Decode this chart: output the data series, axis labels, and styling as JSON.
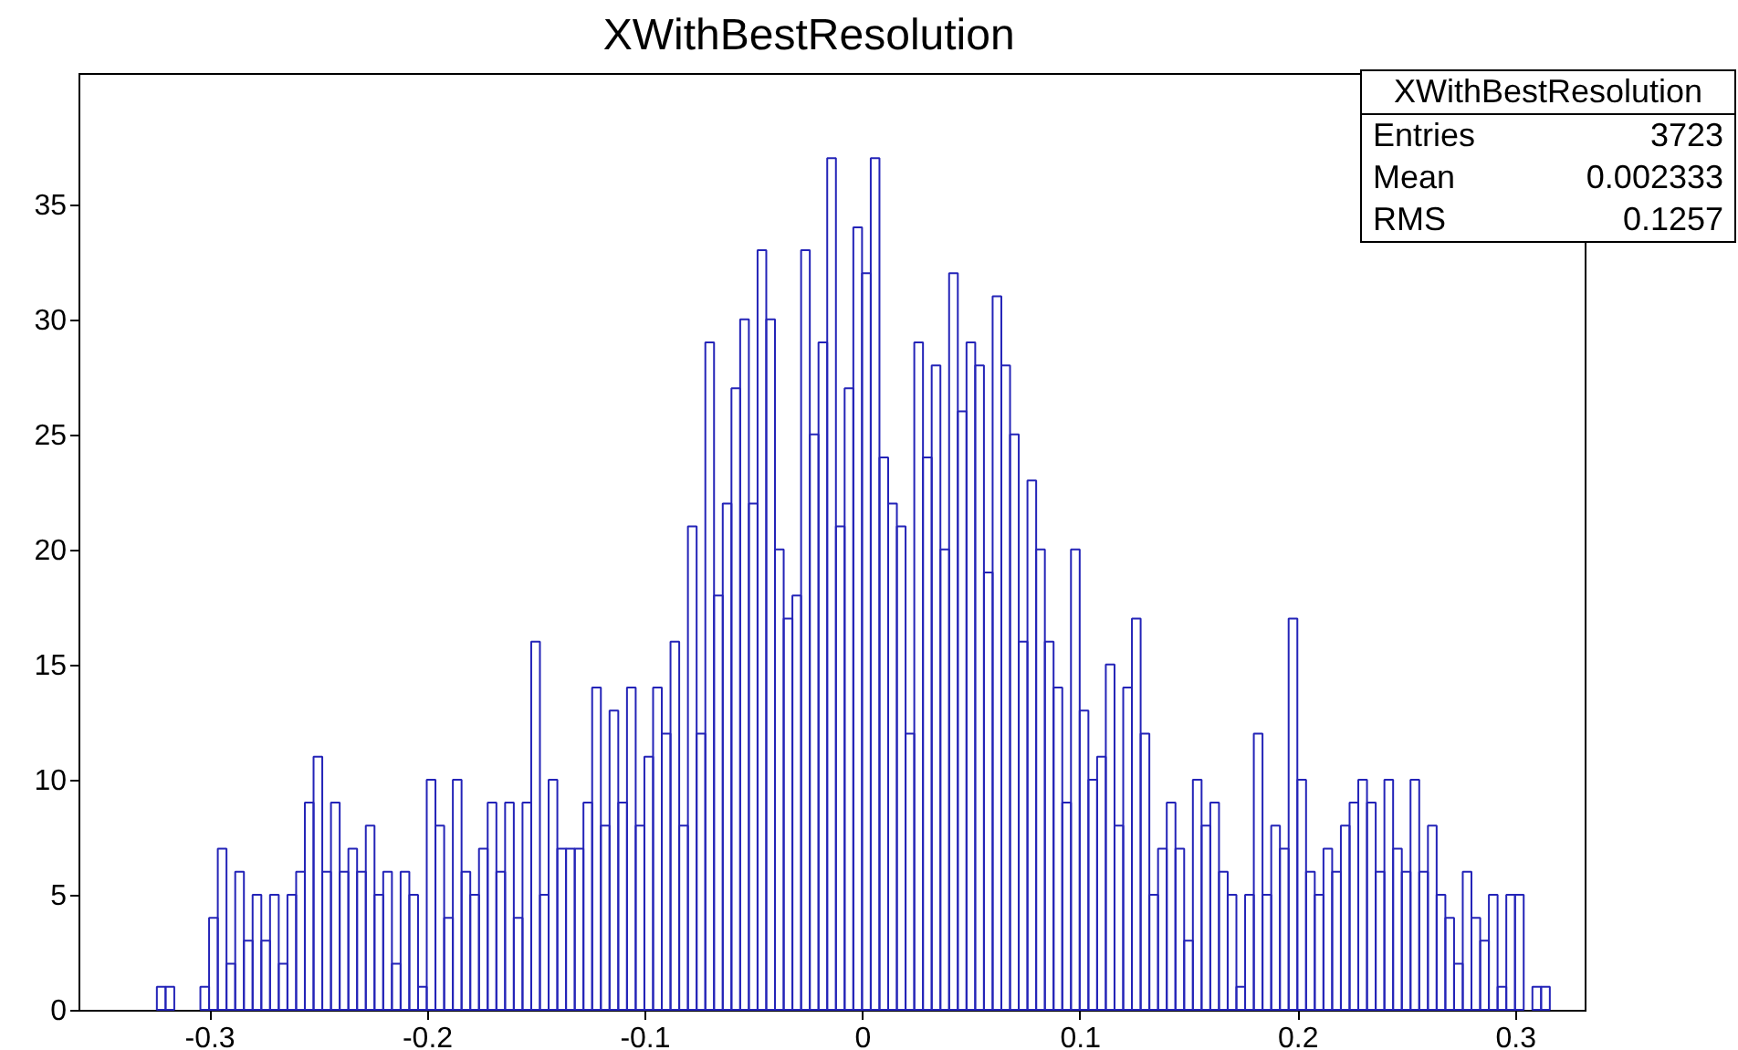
{
  "chart_data": {
    "type": "histogram",
    "title": "XWithBestResolution",
    "annotations": [
      "XWithBestResolution",
      "Entries 3723",
      "Mean 0.002333",
      "RMS 0.1257"
    ],
    "color": "#2424b8",
    "xlim": [
      -0.36,
      0.332
    ],
    "xticks": [
      -0.3,
      -0.2,
      -0.1,
      0,
      0.1,
      0.2,
      0.3
    ],
    "ylim": [
      0,
      40.7
    ],
    "yticks": [
      0,
      5,
      10,
      15,
      20,
      25,
      30,
      35
    ],
    "bins": [
      -0.36,
      -0.356,
      -0.352,
      -0.348,
      -0.344,
      -0.34,
      -0.336,
      -0.332,
      -0.328,
      -0.324,
      -0.32,
      -0.316,
      -0.312,
      -0.308,
      -0.304,
      -0.3,
      -0.296,
      -0.292,
      -0.288,
      -0.284,
      -0.28,
      -0.276,
      -0.272,
      -0.268,
      -0.264,
      -0.26,
      -0.256,
      -0.252,
      -0.248,
      -0.244,
      -0.24,
      -0.236,
      -0.232,
      -0.228,
      -0.224,
      -0.22,
      -0.216,
      -0.212,
      -0.208,
      -0.204,
      -0.2,
      -0.196,
      -0.192,
      -0.188,
      -0.184,
      -0.18,
      -0.176,
      -0.172,
      -0.168,
      -0.164,
      -0.16,
      -0.156,
      -0.152,
      -0.148,
      -0.144,
      -0.14,
      -0.136,
      -0.132,
      -0.128,
      -0.124,
      -0.12,
      -0.116,
      -0.112,
      -0.108,
      -0.104,
      -0.1,
      -0.096,
      -0.092,
      -0.088,
      -0.084,
      -0.08,
      -0.076,
      -0.072,
      -0.068,
      -0.064,
      -0.06,
      -0.056,
      -0.052,
      -0.048,
      -0.044,
      -0.04,
      -0.036,
      -0.032,
      -0.028,
      -0.024,
      -0.02,
      -0.016,
      -0.012,
      -0.008,
      -0.004,
      0,
      0.004,
      0.008,
      0.012,
      0.016,
      0.02,
      0.024,
      0.028,
      0.032,
      0.036,
      0.04,
      0.044,
      0.048,
      0.052,
      0.056,
      0.06,
      0.064,
      0.068,
      0.072,
      0.076,
      0.08,
      0.084,
      0.088,
      0.092,
      0.096,
      0.1,
      0.104,
      0.108,
      0.112,
      0.116,
      0.12,
      0.124,
      0.128,
      0.132,
      0.136,
      0.14,
      0.144,
      0.148,
      0.152,
      0.156,
      0.16,
      0.164,
      0.168,
      0.172,
      0.176,
      0.18,
      0.184,
      0.188,
      0.192,
      0.196,
      0.2,
      0.204,
      0.208,
      0.212,
      0.216,
      0.22,
      0.224,
      0.228,
      0.232,
      0.236,
      0.24,
      0.244,
      0.248,
      0.252,
      0.256,
      0.26,
      0.264,
      0.268,
      0.272,
      0.276,
      0.28,
      0.284,
      0.288,
      0.292,
      0.296,
      0.3,
      0.304,
      0.308,
      0.312,
      0.316,
      0.32,
      0.324,
      0.328,
      0.332
    ],
    "values": [
      0,
      0,
      0,
      0,
      0,
      0,
      0,
      0,
      0,
      1,
      1,
      0,
      0,
      0,
      1,
      4,
      7,
      2,
      6,
      3,
      5,
      3,
      5,
      2,
      5,
      6,
      9,
      11,
      6,
      9,
      6,
      7,
      6,
      8,
      5,
      6,
      2,
      6,
      5,
      1,
      10,
      8,
      4,
      10,
      6,
      5,
      7,
      9,
      6,
      9,
      4,
      9,
      16,
      5,
      10,
      7,
      7,
      7,
      9,
      14,
      8,
      13,
      9,
      14,
      8,
      11,
      14,
      12,
      16,
      8,
      21,
      12,
      29,
      18,
      22,
      27,
      30,
      22,
      33,
      30,
      20,
      17,
      18,
      33,
      25,
      29,
      37,
      21,
      27,
      34,
      32,
      37,
      24,
      22,
      21,
      12,
      29,
      24,
      28,
      20,
      32,
      26,
      29,
      28,
      19,
      31,
      28,
      25,
      16,
      23,
      20,
      16,
      14,
      9,
      20,
      13,
      10,
      11,
      15,
      8,
      14,
      17,
      12,
      5,
      7,
      9,
      7,
      3,
      10,
      8,
      9,
      6,
      5,
      1,
      5,
      12,
      5,
      8,
      7,
      17,
      10,
      6,
      5,
      7,
      6,
      8,
      9,
      10,
      9,
      6,
      10,
      7,
      6,
      10,
      6,
      8,
      5,
      4,
      2,
      6,
      4,
      3,
      5,
      1,
      5,
      5,
      0,
      1,
      1,
      0,
      0,
      0,
      0
    ]
  }
}
